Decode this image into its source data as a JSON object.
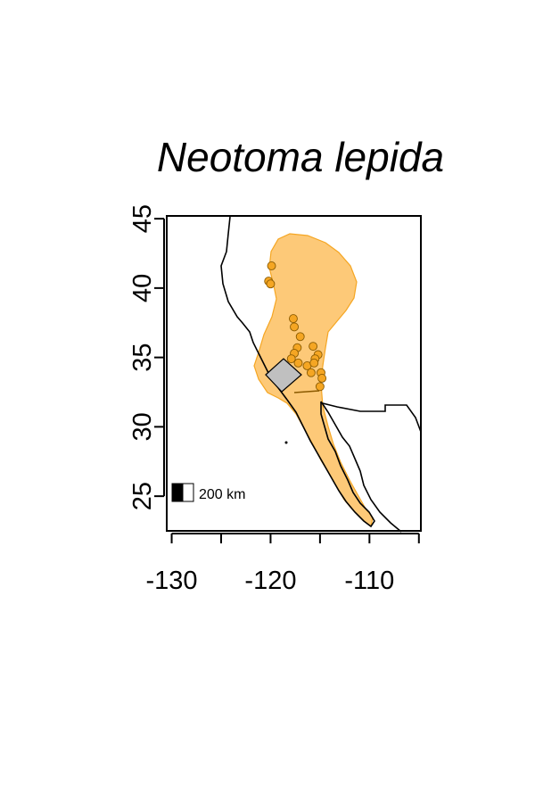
{
  "map": {
    "title": "Neotoma lepida",
    "x_ticks": [
      -130,
      -120,
      -110
    ],
    "x_minor_ticks": [
      -130,
      -125,
      -120,
      -115,
      -110,
      -105
    ],
    "y_ticks": [
      25,
      30,
      35,
      40,
      45
    ],
    "xlim": [
      -130.5,
      -104.8
    ],
    "ylim": [
      22.5,
      45.2
    ],
    "scale_bar_label": "200 km",
    "colors": {
      "range_fill": "#FDC978",
      "range_stroke": "#F5A623",
      "point_fill": "#F5A623",
      "point_stroke": "#8a5a00",
      "polygon_fill": "#c0c0c0",
      "outline": "#000000"
    },
    "occurrences": [
      {
        "lon": -119.9,
        "lat": 41.6
      },
      {
        "lon": -120.2,
        "lat": 40.5
      },
      {
        "lon": -120.0,
        "lat": 40.3
      },
      {
        "lon": -117.7,
        "lat": 37.8
      },
      {
        "lon": -117.6,
        "lat": 37.2
      },
      {
        "lon": -117.0,
        "lat": 36.5
      },
      {
        "lon": -117.3,
        "lat": 35.7
      },
      {
        "lon": -117.6,
        "lat": 35.3
      },
      {
        "lon": -117.9,
        "lat": 34.9
      },
      {
        "lon": -117.2,
        "lat": 34.6
      },
      {
        "lon": -116.3,
        "lat": 34.4
      },
      {
        "lon": -115.7,
        "lat": 35.8
      },
      {
        "lon": -115.2,
        "lat": 35.2
      },
      {
        "lon": -115.5,
        "lat": 34.9
      },
      {
        "lon": -115.6,
        "lat": 34.6
      },
      {
        "lon": -115.9,
        "lat": 33.9
      },
      {
        "lon": -114.9,
        "lat": 33.9
      },
      {
        "lon": -114.8,
        "lat": 33.5
      },
      {
        "lon": -115.0,
        "lat": 32.9
      }
    ]
  }
}
